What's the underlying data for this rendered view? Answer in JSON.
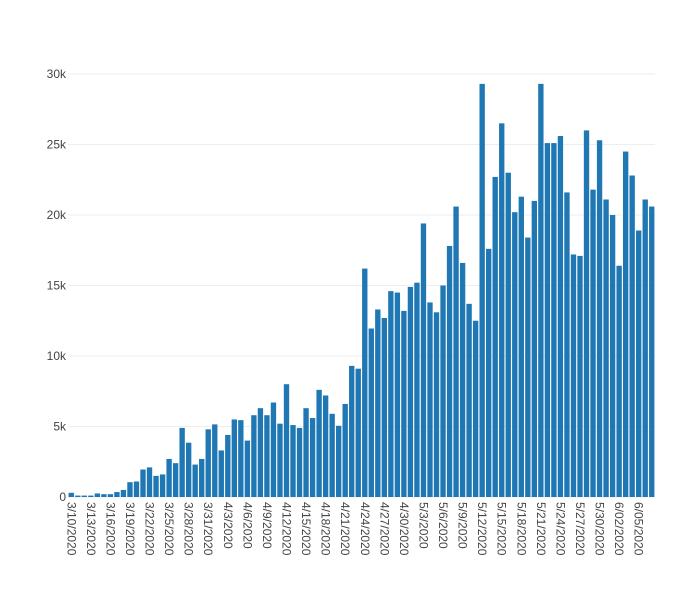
{
  "chart_data": {
    "type": "bar",
    "title": "",
    "xlabel": "",
    "ylabel": "",
    "ylim": [
      0,
      30000
    ],
    "grid": true,
    "legend": "none",
    "bar_color": "#1f77b4",
    "yticks": [
      {
        "value": 0,
        "label": "0"
      },
      {
        "value": 5000,
        "label": "5k"
      },
      {
        "value": 10000,
        "label": "10k"
      },
      {
        "value": 15000,
        "label": "15k"
      },
      {
        "value": 20000,
        "label": "20k"
      },
      {
        "value": 25000,
        "label": "25k"
      },
      {
        "value": 30000,
        "label": "30k"
      }
    ],
    "xtick_labels": [
      "3/10/2020",
      "3/13/2020",
      "3/16/2020",
      "3/19/2020",
      "3/22/2020",
      "3/25/2020",
      "3/28/2020",
      "3/31/2020",
      "4/3/2020",
      "4/6/2020",
      "4/9/2020",
      "4/12/2020",
      "4/15/2020",
      "4/18/2020",
      "4/21/2020",
      "4/24/2020",
      "4/27/2020",
      "4/30/2020",
      "5/3/2020",
      "5/6/2020",
      "5/9/2020",
      "5/12/2020",
      "5/15/2020",
      "5/18/2020",
      "5/21/2020",
      "5/24/2020",
      "5/27/2020",
      "5/30/2020",
      "6/02/2020",
      "6/05/2020"
    ],
    "categories": [
      "3/10/2020",
      "3/11/2020",
      "3/12/2020",
      "3/13/2020",
      "3/14/2020",
      "3/15/2020",
      "3/16/2020",
      "3/17/2020",
      "3/18/2020",
      "3/19/2020",
      "3/20/2020",
      "3/21/2020",
      "3/22/2020",
      "3/23/2020",
      "3/24/2020",
      "3/25/2020",
      "3/26/2020",
      "3/27/2020",
      "3/28/2020",
      "3/29/2020",
      "3/30/2020",
      "3/31/2020",
      "4/1/2020",
      "4/2/2020",
      "4/3/2020",
      "4/4/2020",
      "4/5/2020",
      "4/6/2020",
      "4/7/2020",
      "4/8/2020",
      "4/9/2020",
      "4/10/2020",
      "4/11/2020",
      "4/12/2020",
      "4/13/2020",
      "4/14/2020",
      "4/15/2020",
      "4/16/2020",
      "4/17/2020",
      "4/18/2020",
      "4/19/2020",
      "4/20/2020",
      "4/21/2020",
      "4/22/2020",
      "4/23/2020",
      "4/24/2020",
      "4/25/2020",
      "4/26/2020",
      "4/27/2020",
      "4/28/2020",
      "4/29/2020",
      "4/30/2020",
      "5/1/2020",
      "5/2/2020",
      "5/3/2020",
      "5/4/2020",
      "5/5/2020",
      "5/6/2020",
      "5/7/2020",
      "5/8/2020",
      "5/9/2020",
      "5/10/2020",
      "5/11/2020",
      "5/12/2020",
      "5/13/2020",
      "5/14/2020",
      "5/15/2020",
      "5/16/2020",
      "5/17/2020",
      "5/18/2020",
      "5/19/2020",
      "5/20/2020",
      "5/21/2020",
      "5/22/2020",
      "5/23/2020",
      "5/24/2020",
      "5/25/2020",
      "5/26/2020",
      "5/27/2020",
      "5/28/2020",
      "5/29/2020",
      "5/30/2020",
      "5/31/2020",
      "6/01/2020",
      "6/02/2020",
      "6/03/2020",
      "6/04/2020",
      "6/05/2020",
      "6/06/2020",
      "6/07/2020"
    ],
    "values": [
      300,
      100,
      100,
      100,
      250,
      200,
      200,
      350,
      500,
      1050,
      1100,
      1950,
      2100,
      1500,
      1600,
      2700,
      2400,
      4900,
      3850,
      2300,
      2700,
      4800,
      5150,
      3300,
      4400,
      5500,
      5450,
      4000,
      5800,
      6300,
      5800,
      6700,
      5200,
      8000,
      5100,
      4900,
      6300,
      5600,
      7600,
      7200,
      5900,
      5050,
      6600,
      9300,
      9100,
      16200,
      11950,
      13300,
      12700,
      14600,
      14500,
      13200,
      14900,
      15200,
      19400,
      13800,
      13100,
      15000,
      17800,
      20600,
      16600,
      13700,
      12500,
      29300,
      17600,
      22700,
      26500,
      23000,
      20200,
      21300,
      18400,
      21000,
      29300,
      25100,
      25100,
      25600,
      21600,
      17200,
      17100,
      26000,
      21800,
      25300,
      21100,
      20000,
      16400,
      24500,
      22800,
      18900,
      21100,
      20600
    ]
  }
}
